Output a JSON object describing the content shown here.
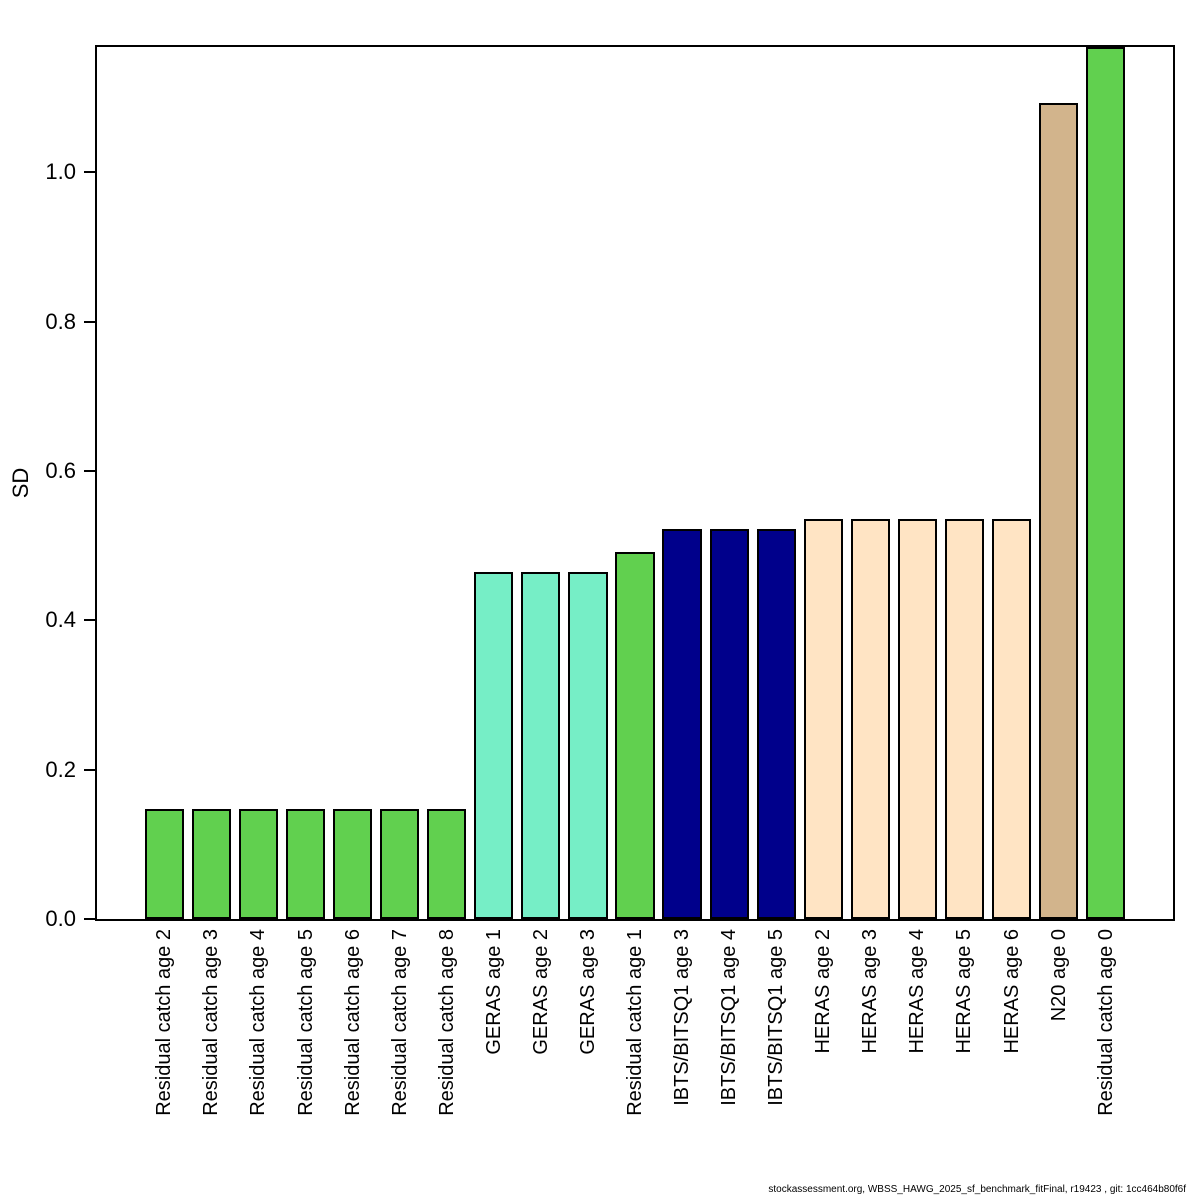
{
  "footer": {
    "text": "stockassessment.org, WBSS_HAWG_2025_sf_benchmark_fitFinal, r19423 , git: 1cc464b80f6f"
  },
  "chart_data": {
    "type": "bar",
    "title": "",
    "xlabel": "",
    "ylabel": "SD",
    "ylim": [
      0,
      1.168
    ],
    "yticks": [
      0.0,
      0.2,
      0.4,
      0.6,
      0.8,
      1.0
    ],
    "grid": false,
    "legend": false,
    "bar_border_color": "#000000",
    "categories": [
      "Residual catch age 2",
      "Residual catch age 3",
      "Residual catch age 4",
      "Residual catch age 5",
      "Residual catch age 6",
      "Residual catch age 7",
      "Residual catch age 8",
      "GERAS age 1",
      "GERAS age 2",
      "GERAS age 3",
      "Residual catch age 1",
      "IBTS/BITSQ1 age 3",
      "IBTS/BITSQ1 age 4",
      "IBTS/BITSQ1 age 5",
      "HERAS age 2",
      "HERAS age 3",
      "HERAS age 4",
      "HERAS age 5",
      "HERAS age 6",
      "N20 age 0",
      "Residual catch age 0"
    ],
    "values": [
      0.147,
      0.147,
      0.147,
      0.147,
      0.147,
      0.147,
      0.147,
      0.465,
      0.465,
      0.465,
      0.492,
      0.523,
      0.523,
      0.523,
      0.536,
      0.536,
      0.536,
      0.536,
      0.536,
      1.093,
      1.168
    ],
    "colors": [
      "#61D04F",
      "#61D04F",
      "#61D04F",
      "#61D04F",
      "#61D04F",
      "#61D04F",
      "#61D04F",
      "#76EEC6",
      "#76EEC6",
      "#76EEC6",
      "#61D04F",
      "#00008B",
      "#00008B",
      "#00008B",
      "#FFE4C4",
      "#FFE4C4",
      "#FFE4C4",
      "#FFE4C4",
      "#FFE4C4",
      "#D2B48C",
      "#61D04F"
    ]
  }
}
